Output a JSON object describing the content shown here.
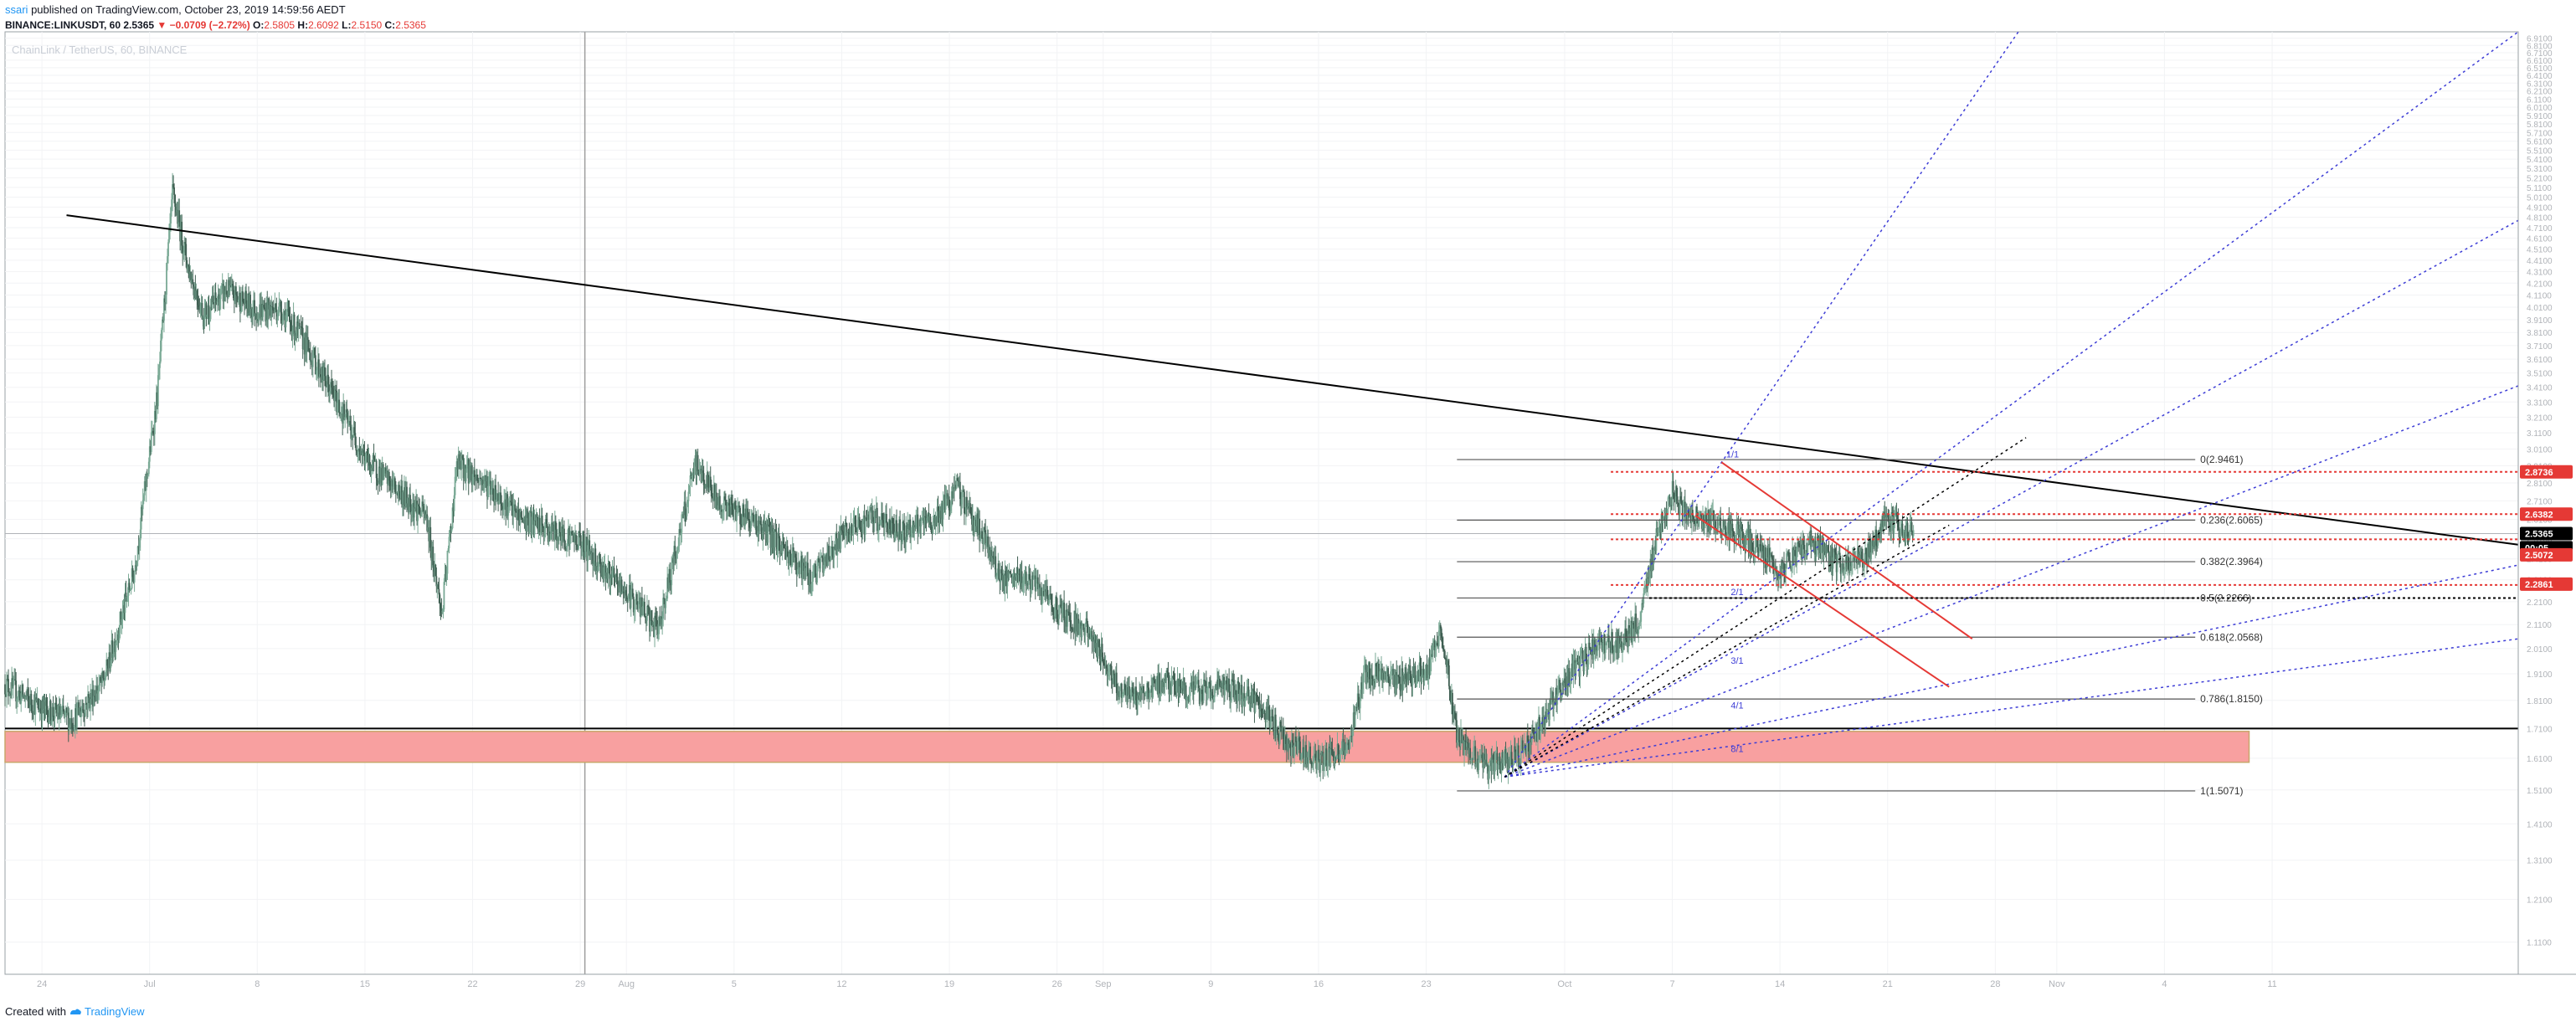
{
  "header": {
    "user": "ssari",
    "published": "published on TradingView.com, October 23, 2019 14:59:56 AEDT",
    "symbol": "BINANCE:LINKUSDT, 60",
    "last": "2.5365",
    "change": "▼ −0.0709 (−2.72%)",
    "o_label": "O:",
    "o_val": "2.5805",
    "h_label": "H:",
    "h_val": "2.6092",
    "l_label": "L:",
    "l_val": "2.5150",
    "c_label": "C:",
    "c_val": "2.5365"
  },
  "watermark": "ChainLink / TetherUS, 60, BINANCE",
  "footer": {
    "created": "Created with",
    "brand": "TradingView"
  },
  "colors": {
    "candle": "#4c7a6a",
    "trendline": "#000000",
    "fib": "#000000",
    "fan": "#3d3dd6",
    "channel": "#e53935",
    "support_zone": "#f8a0a0",
    "hline_red": "#e53935",
    "price_badge": "#e53935",
    "current_badge": "#000000"
  },
  "chart_data": {
    "type": "candlestick",
    "title": "ChainLink / TetherUS, 60, BINANCE",
    "x_ticks": [
      "24",
      "Jul",
      "8",
      "15",
      "22",
      "29",
      "Aug",
      "5",
      "12",
      "19",
      "26",
      "Sep",
      "9",
      "16",
      "23",
      "Oct",
      "7",
      "14",
      "21",
      "28",
      "Nov",
      "4",
      "11"
    ],
    "x_tick_days": [
      0,
      7,
      14,
      21,
      28,
      35,
      38,
      45,
      52,
      59,
      66,
      69,
      76,
      83,
      90,
      99,
      106,
      113,
      120,
      127,
      131,
      138,
      145
    ],
    "x_range_days": [
      -2.4,
      161
    ],
    "y_ticks": [
      "1.1100",
      "1.2100",
      "1.3100",
      "1.4100",
      "1.5100",
      "1.6100",
      "1.7100",
      "1.8100",
      "1.9100",
      "2.0100",
      "2.1100",
      "2.2100",
      "2.3100",
      "2.4100",
      "2.5100",
      "2.6100",
      "2.7100",
      "2.8100",
      "2.9100",
      "3.0100",
      "3.1100",
      "3.2100",
      "3.3100",
      "3.4100",
      "3.5100",
      "3.6100",
      "3.7100",
      "3.8100",
      "3.9100",
      "4.0100",
      "4.1100",
      "4.2100",
      "4.3100",
      "4.4100",
      "4.5100",
      "4.6100",
      "4.7100",
      "4.8100",
      "4.9100",
      "5.0100",
      "5.1100",
      "5.2100",
      "5.3100",
      "5.4100",
      "5.5100",
      "5.6100",
      "5.7100",
      "5.8100",
      "5.9100",
      "6.0100",
      "6.1100",
      "6.2100",
      "6.3100",
      "6.4100",
      "6.5100",
      "6.6100",
      "6.7100",
      "6.8100",
      "6.9100"
    ],
    "y_log": true,
    "y_range": [
      1.04,
      7.0
    ],
    "price_path": [
      [
        -2.4,
        1.87
      ],
      [
        0,
        1.78
      ],
      [
        2,
        1.74
      ],
      [
        4,
        1.88
      ],
      [
        6,
        2.35
      ],
      [
        7.5,
        3.35
      ],
      [
        8.5,
        5.05
      ],
      [
        9.5,
        4.35
      ],
      [
        10.5,
        3.95
      ],
      [
        12,
        4.15
      ],
      [
        14,
        3.98
      ],
      [
        15.5,
        4.0
      ],
      [
        17,
        3.75
      ],
      [
        19.5,
        3.25
      ],
      [
        21,
        2.95
      ],
      [
        23,
        2.78
      ],
      [
        25,
        2.62
      ],
      [
        26,
        2.15
      ],
      [
        27,
        2.92
      ],
      [
        29,
        2.8
      ],
      [
        31,
        2.62
      ],
      [
        33,
        2.55
      ],
      [
        35,
        2.5
      ],
      [
        37,
        2.32
      ],
      [
        39,
        2.18
      ],
      [
        40,
        2.08
      ],
      [
        41,
        2.38
      ],
      [
        42.5,
        2.92
      ],
      [
        44,
        2.7
      ],
      [
        46,
        2.62
      ],
      [
        48,
        2.48
      ],
      [
        50,
        2.32
      ],
      [
        52,
        2.52
      ],
      [
        54,
        2.62
      ],
      [
        56,
        2.55
      ],
      [
        58,
        2.6
      ],
      [
        59.5,
        2.78
      ],
      [
        61,
        2.55
      ],
      [
        62.5,
        2.3
      ],
      [
        64,
        2.32
      ],
      [
        66,
        2.18
      ],
      [
        68,
        2.08
      ],
      [
        70,
        1.86
      ],
      [
        71,
        1.82
      ],
      [
        73,
        1.88
      ],
      [
        75,
        1.84
      ],
      [
        77,
        1.86
      ],
      [
        79,
        1.8
      ],
      [
        81,
        1.66
      ],
      [
        83,
        1.6
      ],
      [
        84,
        1.62
      ],
      [
        85,
        1.66
      ],
      [
        86,
        1.92
      ],
      [
        88,
        1.88
      ],
      [
        90,
        1.92
      ],
      [
        91,
        2.08
      ],
      [
        92,
        1.68
      ],
      [
        93,
        1.62
      ],
      [
        94,
        1.58
      ],
      [
        96,
        1.62
      ],
      [
        97,
        1.68
      ],
      [
        99,
        1.88
      ],
      [
        101,
        2.02
      ],
      [
        103,
        2.05
      ],
      [
        104,
        2.15
      ],
      [
        105,
        2.55
      ],
      [
        106,
        2.76
      ],
      [
        107,
        2.62
      ],
      [
        109,
        2.6
      ],
      [
        111,
        2.5
      ],
      [
        113,
        2.35
      ],
      [
        115,
        2.5
      ],
      [
        117,
        2.38
      ],
      [
        118.5,
        2.42
      ],
      [
        120,
        2.62
      ],
      [
        121,
        2.55
      ],
      [
        121.7,
        2.5365
      ]
    ],
    "trendline": {
      "from": [
        1.6,
        4.83
      ],
      "to": [
        161,
        2.48
      ]
    },
    "support_zone": {
      "from_day": -2.4,
      "to_day": 143.5,
      "top": 1.7,
      "bottom": 1.597
    },
    "support_line": 1.71,
    "fib_retracement": {
      "from_day": 92,
      "to_day": 140,
      "levels": [
        {
          "label": "0(2.9461)",
          "value": 2.9461
        },
        {
          "label": "0.236(2.6065)",
          "value": 2.6065
        },
        {
          "label": "0.382(2.3964)",
          "value": 2.3964
        },
        {
          "label": "0.5(2.2266)",
          "value": 2.2266
        },
        {
          "label": "0.618(2.0568)",
          "value": 2.0568
        },
        {
          "label": "0.786(1.8150)",
          "value": 1.815
        },
        {
          "label": "1(1.5071)",
          "value": 1.5071
        }
      ]
    },
    "gann_fan": {
      "origin": [
        95.1,
        1.55
      ],
      "ends": [
        [
          128.5,
          7.0
        ],
        [
          161,
          7.0
        ],
        [
          161,
          4.78
        ],
        [
          161,
          3.42
        ],
        [
          161,
          2.38
        ],
        [
          161,
          2.05
        ]
      ],
      "inner_ends": [
        [
          129,
          3.08
        ],
        [
          124,
          2.58
        ]
      ],
      "labels": [
        "1/1",
        "2/1",
        "3/1",
        "4/1",
        "8/1"
      ]
    },
    "channel": {
      "upper": {
        "from": [
          109.2,
          2.93
        ],
        "to": [
          125.5,
          2.05
        ]
      },
      "lower": {
        "from": [
          107.5,
          2.63
        ],
        "to": [
          124,
          1.86
        ]
      }
    },
    "red_hlines": [
      2.8736,
      2.6382,
      2.5072,
      2.2861
    ],
    "black_dotted_hline": 2.2266,
    "price_badges": [
      {
        "label": "2.8736",
        "value": 2.8736,
        "style": "red"
      },
      {
        "label": "2.6382",
        "value": 2.6382,
        "style": "red"
      },
      {
        "label": "2.5365",
        "value": 2.5365,
        "style": "black"
      },
      {
        "label": "00:05",
        "value": 2.465,
        "style": "black"
      },
      {
        "label": "2.5072",
        "value": 2.43,
        "style": "red"
      },
      {
        "label": "2.2861",
        "value": 2.29,
        "style": "red"
      }
    ],
    "current_price": 2.5365,
    "vertical_marker_day": 35.3
  }
}
